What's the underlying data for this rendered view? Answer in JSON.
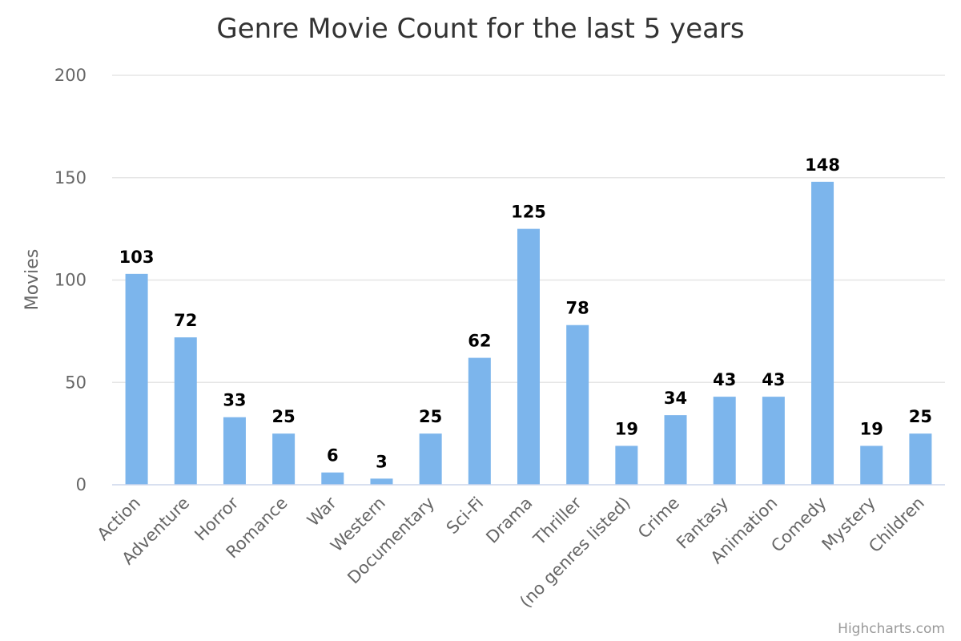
{
  "chart_data": {
    "type": "bar",
    "title": "Genre Movie Count for the last 5 years",
    "ylabel": "Movies",
    "ylim": [
      0,
      200
    ],
    "yticks": [
      0,
      50,
      100,
      150,
      200
    ],
    "grid": true,
    "data_labels": true,
    "categories": [
      "Action",
      "Adventure",
      "Horror",
      "Romance",
      "War",
      "Western",
      "Documentary",
      "Sci-Fi",
      "Drama",
      "Thriller",
      "(no genres listed)",
      "Crime",
      "Fantasy",
      "Animation",
      "Comedy",
      "Mystery",
      "Children"
    ],
    "values": [
      103,
      72,
      33,
      25,
      6,
      3,
      25,
      62,
      125,
      78,
      19,
      34,
      43,
      43,
      148,
      19,
      25
    ],
    "bar_color": "#7cb5ec",
    "credits": "Highcharts.com"
  }
}
